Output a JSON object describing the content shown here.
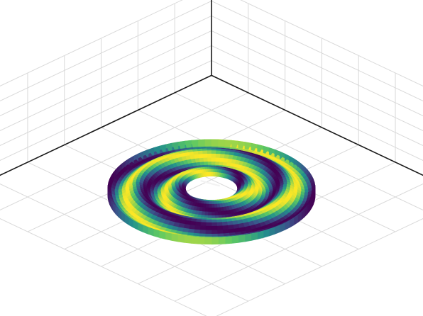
{
  "chart_data": {
    "type": "surface",
    "surface_kind": "flattened annular ring with radial/angular ripples",
    "colormap": "viridis",
    "colormap_stops": [
      "#440154",
      "#3b528b",
      "#21918c",
      "#5ec962",
      "#fde725"
    ],
    "grid": true,
    "axes": {
      "x": {
        "label": "",
        "tick_labels": []
      },
      "y": {
        "label": "",
        "tick_labels": []
      },
      "z": {
        "label": "",
        "tick_labels": []
      }
    },
    "title": "",
    "legend": false,
    "ring": {
      "inner_radius": 0.25,
      "outer_radius": 1.0,
      "radial_waves": 2,
      "angular_waves": 2
    }
  },
  "colors": {
    "background": "#ffffff",
    "grid_line": "#d9d9d9",
    "axis_line": "#1a1a1a",
    "hole_highlight": "#f2f2f2"
  }
}
